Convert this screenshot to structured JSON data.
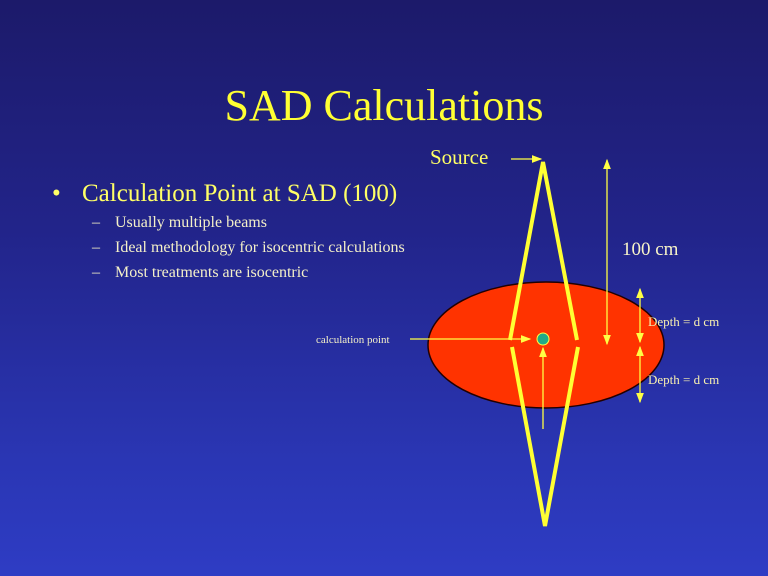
{
  "slide": {
    "title": "SAD Calculations",
    "bullet": "Calculation Point at SAD (100)",
    "bullet_marker": "•",
    "sub_marker": "–",
    "sub_bullets": [
      "Usually multiple beams",
      "Ideal methodology for isocentric calculations",
      "Most treatments are isocentric"
    ]
  },
  "diagram": {
    "source_label": "Source",
    "distance_label": "100 cm",
    "calc_point_label": "calculation point",
    "depth_labels": [
      "Depth = d cm",
      "Depth = d cm"
    ],
    "colors": {
      "patient": "#ff3300",
      "beam": "#ffff33",
      "calc_point": "#22aa88",
      "text": "#ffff66"
    }
  }
}
